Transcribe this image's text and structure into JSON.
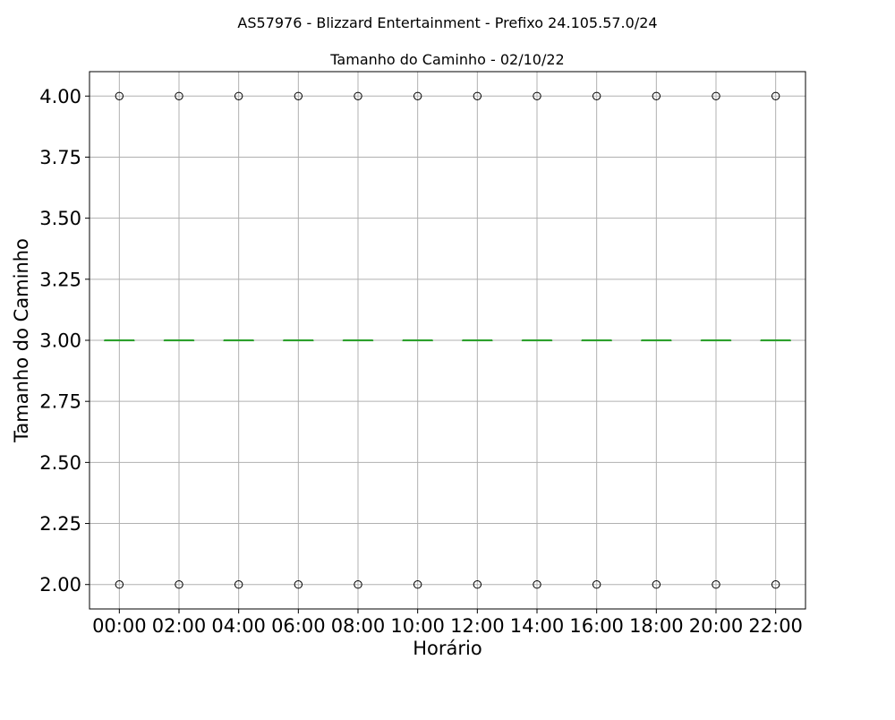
{
  "chart_data": {
    "type": "box",
    "suptitle": "AS57976 - Blizzard Entertainment - Prefixo 24.105.57.0/24",
    "title": "Tamanho do Caminho - 02/10/22",
    "xlabel": "Horário",
    "ylabel": "Tamanho do Caminho",
    "categories": [
      "00:00",
      "02:00",
      "04:00",
      "06:00",
      "08:00",
      "10:00",
      "12:00",
      "14:00",
      "16:00",
      "18:00",
      "20:00",
      "22:00"
    ],
    "medians": [
      3,
      3,
      3,
      3,
      3,
      3,
      3,
      3,
      3,
      3,
      3,
      3
    ],
    "q1": [
      3,
      3,
      3,
      3,
      3,
      3,
      3,
      3,
      3,
      3,
      3,
      3
    ],
    "q3": [
      3,
      3,
      3,
      3,
      3,
      3,
      3,
      3,
      3,
      3,
      3,
      3
    ],
    "fliers": [
      [
        2,
        4
      ],
      [
        2,
        4
      ],
      [
        2,
        4
      ],
      [
        2,
        4
      ],
      [
        2,
        4
      ],
      [
        2,
        4
      ],
      [
        2,
        4
      ],
      [
        2,
        4
      ],
      [
        2,
        4
      ],
      [
        2,
        4
      ],
      [
        2,
        4
      ],
      [
        2,
        4
      ]
    ],
    "ylim": [
      1.9,
      4.1
    ],
    "yticks": [
      2.0,
      2.25,
      2.5,
      2.75,
      3.0,
      3.25,
      3.5,
      3.75,
      4.0
    ],
    "ytick_labels": [
      "2.00",
      "2.25",
      "2.50",
      "2.75",
      "3.00",
      "3.25",
      "3.50",
      "3.75",
      "4.00"
    ],
    "grid": true,
    "colors": {
      "median": "#2ca02c",
      "grid": "#b0b0b0",
      "flier_edge": "#000000",
      "frame": "#000000"
    }
  }
}
